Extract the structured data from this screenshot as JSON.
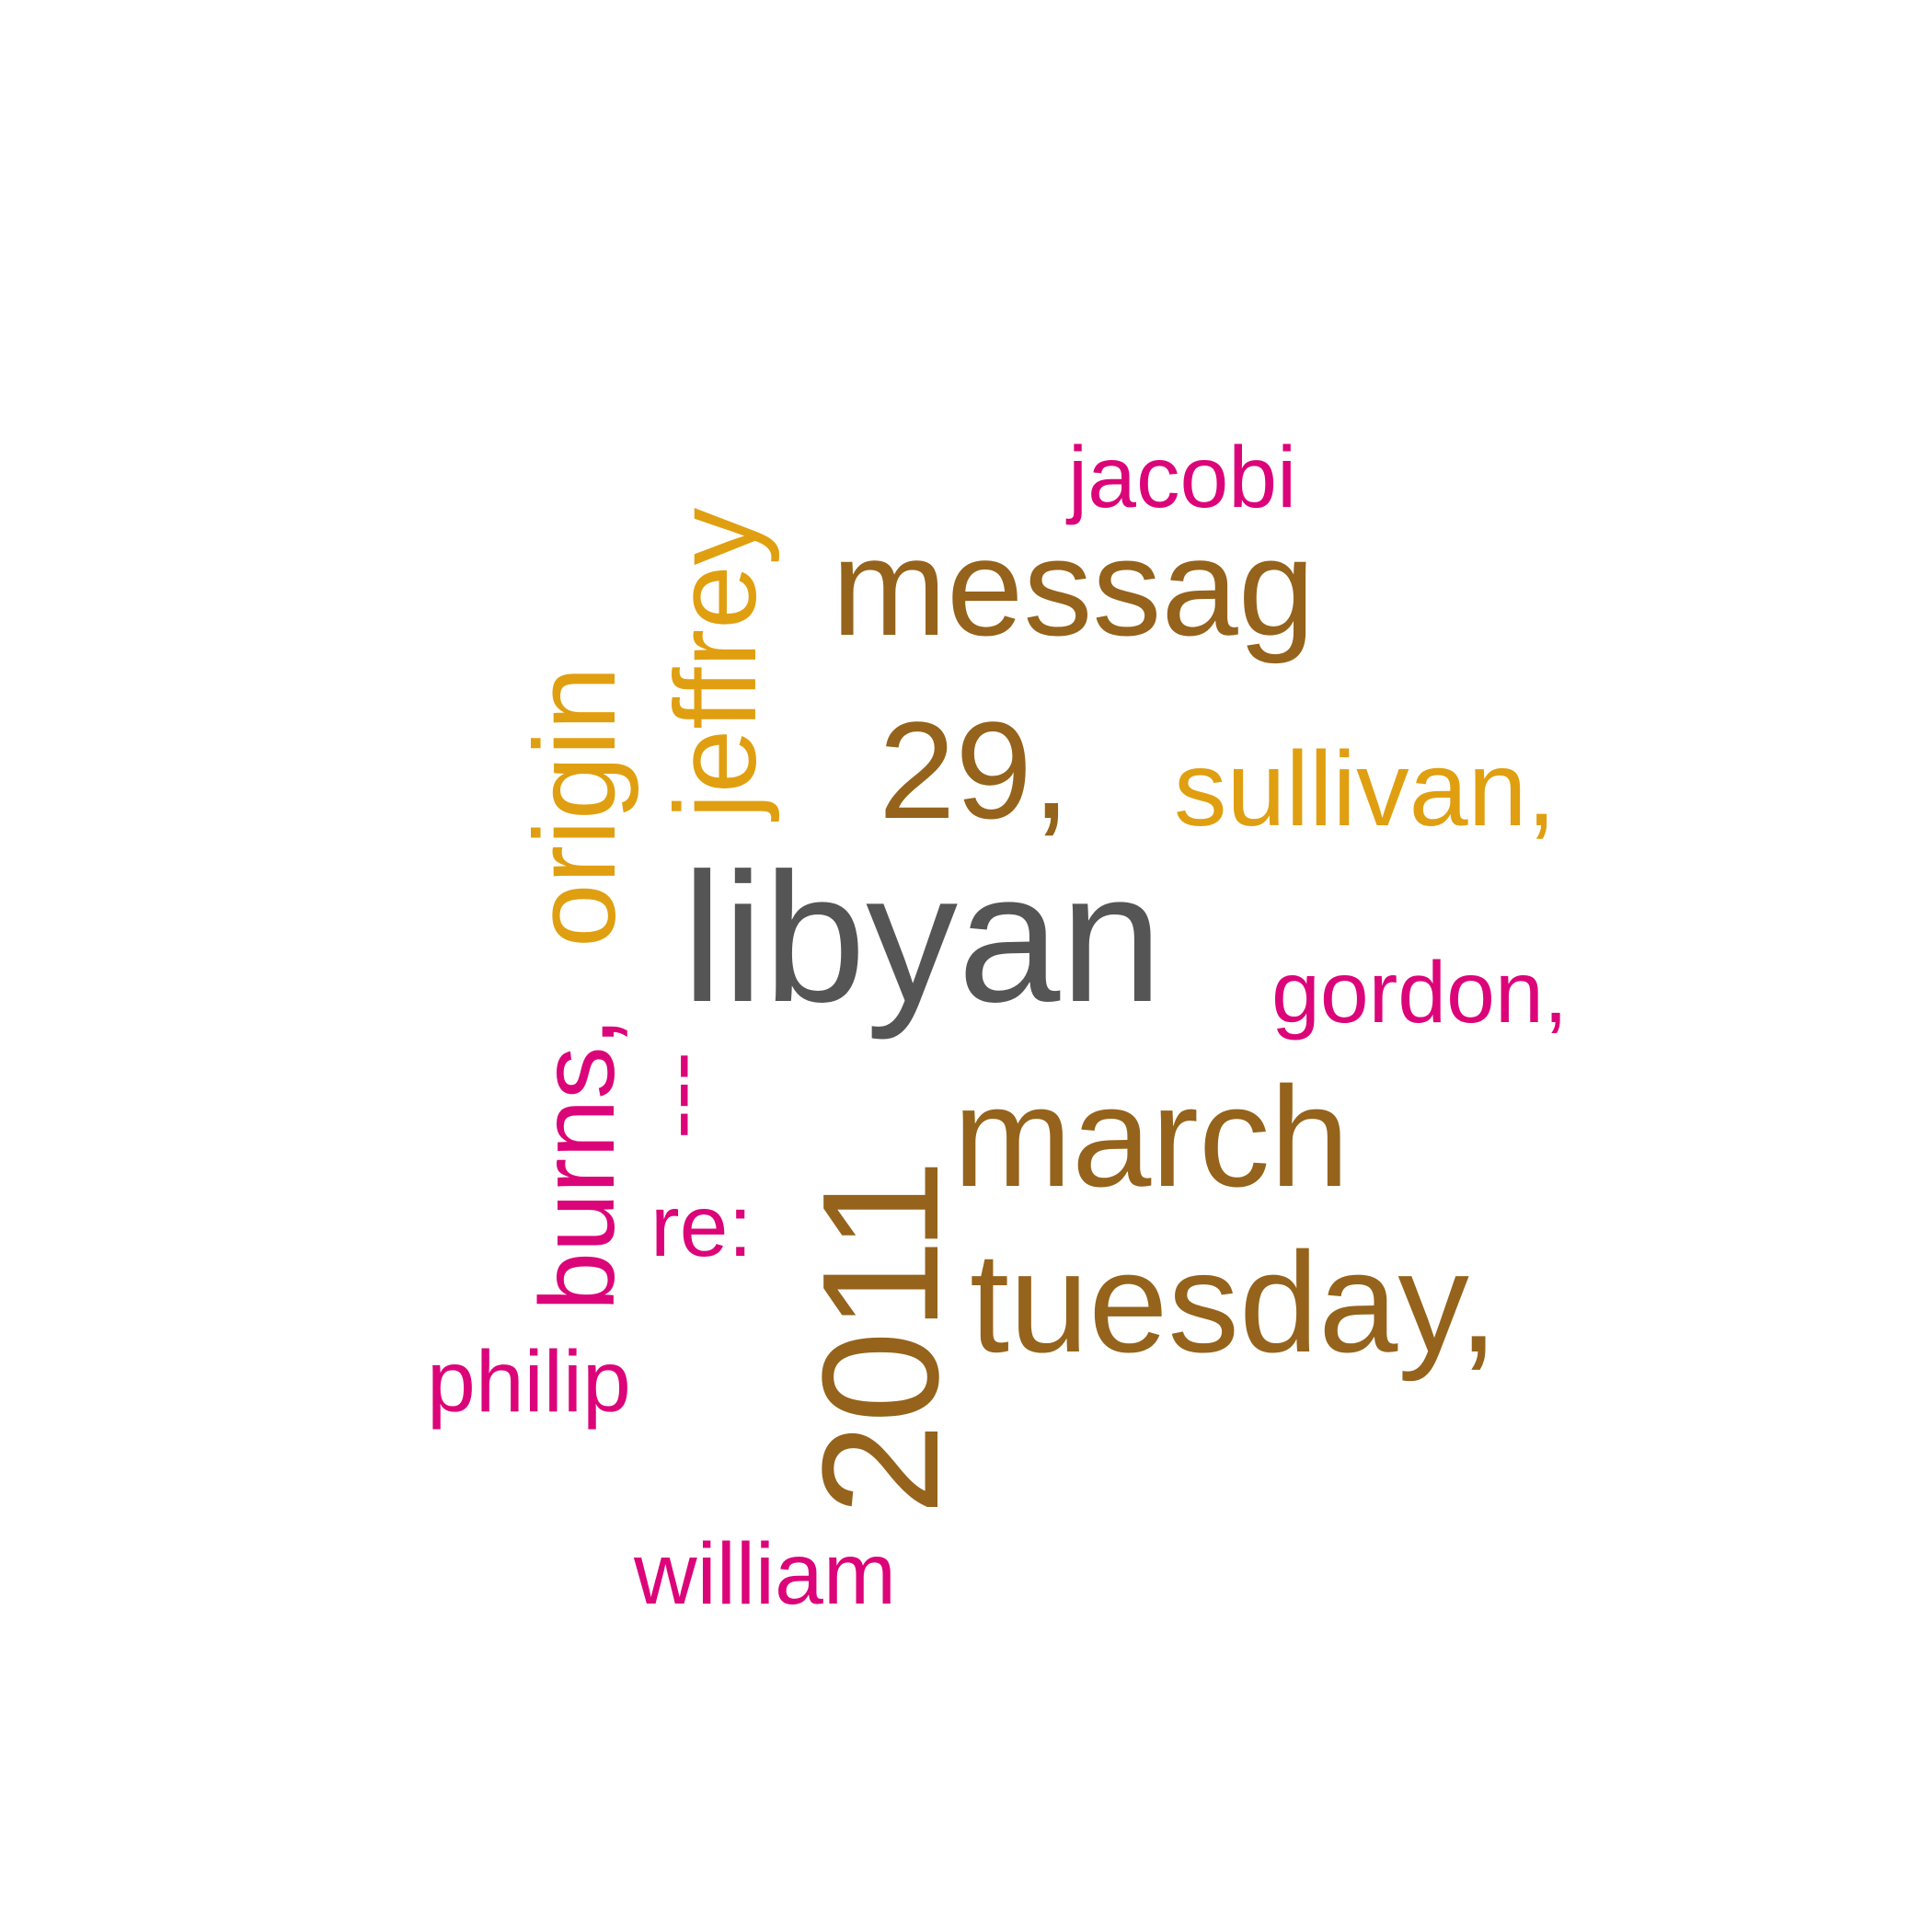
{
  "colors": {
    "background": "#ffffff",
    "dark_gray": "#555555",
    "brown": "#95631b",
    "gold": "#e09f10",
    "magenta": "#dc0479"
  },
  "words": {
    "libyan": "libyan",
    "messag": "messag",
    "w_29": "29,",
    "w_2011": "2011",
    "march": "march",
    "tuesday": "tuesday,",
    "sullivan": "sullivan,",
    "jeffrey": "jeffrey",
    "origin": "origin",
    "jacobi": "jacobi",
    "gordon": "gordon,",
    "burns": "burns,",
    "dashes": "---",
    "re": "re:",
    "philip": "philip",
    "william": "william"
  }
}
